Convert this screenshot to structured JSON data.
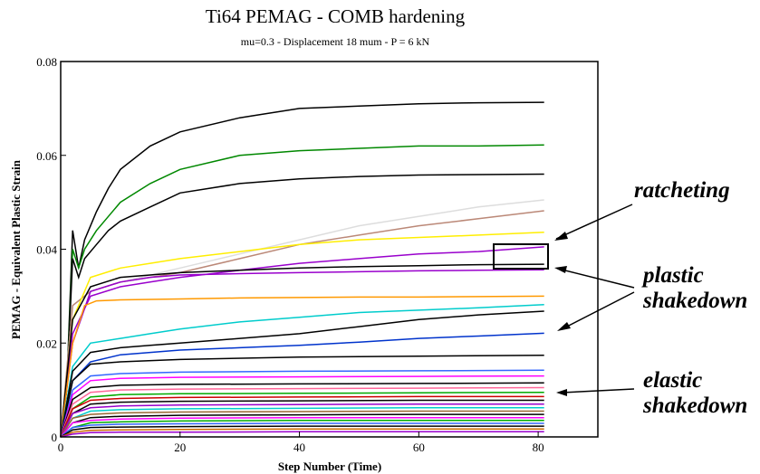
{
  "chart_data": {
    "type": "line",
    "title": "Ti64 PEMAG - COMB hardening",
    "subtitle": "mu=0.3 - Displacement 18 mum - P = 6 kN",
    "xlabel": "Step Number (Time)",
    "ylabel": "PEMAG - Equivalent Plastic Strain",
    "xlim": [
      0,
      90
    ],
    "ylim": [
      0,
      0.08
    ],
    "x_ticks": [
      "0",
      "20",
      "40",
      "60",
      "80"
    ],
    "y_ticks": [
      "0",
      "0.02",
      "0.04",
      "0.06",
      "0.08"
    ],
    "grid": false,
    "series": [
      {
        "color": "#000000",
        "x": [
          0,
          1,
          2,
          3,
          4,
          6,
          8,
          10,
          15,
          20,
          30,
          40,
          50,
          60,
          70,
          81
        ],
        "y": [
          0,
          0.01,
          0.044,
          0.036,
          0.042,
          0.048,
          0.053,
          0.057,
          0.062,
          0.065,
          0.068,
          0.07,
          0.0705,
          0.071,
          0.0712,
          0.0713
        ]
      },
      {
        "color": "#008800",
        "x": [
          0,
          1,
          2,
          3,
          4,
          6,
          8,
          10,
          15,
          20,
          30,
          40,
          50,
          60,
          70,
          81
        ],
        "y": [
          0,
          0.01,
          0.04,
          0.036,
          0.04,
          0.044,
          0.047,
          0.05,
          0.054,
          0.057,
          0.06,
          0.061,
          0.0615,
          0.062,
          0.062,
          0.0622
        ]
      },
      {
        "color": "#000000",
        "x": [
          0,
          1,
          2,
          3,
          4,
          6,
          8,
          10,
          15,
          20,
          30,
          40,
          50,
          60,
          70,
          81
        ],
        "y": [
          0,
          0.01,
          0.038,
          0.034,
          0.038,
          0.041,
          0.044,
          0.046,
          0.049,
          0.052,
          0.054,
          0.055,
          0.0555,
          0.0558,
          0.0559,
          0.056
        ]
      },
      {
        "color": "#dddddd",
        "x": [
          0,
          2,
          5,
          10,
          20,
          30,
          40,
          50,
          60,
          70,
          81
        ],
        "y": [
          0,
          0.028,
          0.031,
          0.033,
          0.036,
          0.039,
          0.042,
          0.045,
          0.047,
          0.049,
          0.0505
        ]
      },
      {
        "color": "#bb8877",
        "x": [
          0,
          2,
          5,
          10,
          20,
          30,
          40,
          50,
          60,
          70,
          81
        ],
        "y": [
          0,
          0.028,
          0.031,
          0.033,
          0.035,
          0.038,
          0.041,
          0.043,
          0.045,
          0.0465,
          0.0482
        ]
      },
      {
        "color": "#ffee00",
        "x": [
          0,
          2,
          5,
          10,
          15,
          20,
          30,
          40,
          50,
          60,
          70,
          81
        ],
        "y": [
          0,
          0.025,
          0.034,
          0.036,
          0.037,
          0.038,
          0.0395,
          0.041,
          0.042,
          0.0425,
          0.043,
          0.0436
        ]
      },
      {
        "color": "#9900cc",
        "x": [
          0,
          2,
          5,
          10,
          15,
          20,
          30,
          40,
          50,
          60,
          70,
          81
        ],
        "y": [
          0,
          0.022,
          0.03,
          0.032,
          0.033,
          0.034,
          0.0355,
          0.037,
          0.038,
          0.039,
          0.0395,
          0.0405
        ]
      },
      {
        "color": "#000000",
        "x": [
          0,
          2,
          5,
          10,
          15,
          20,
          30,
          40,
          50,
          60,
          70,
          81
        ],
        "y": [
          0,
          0.025,
          0.032,
          0.034,
          0.0345,
          0.035,
          0.0355,
          0.036,
          0.0363,
          0.0365,
          0.0367,
          0.0368
        ]
      },
      {
        "color": "#9900cc",
        "x": [
          0,
          2,
          5,
          10,
          15,
          20,
          30,
          40,
          50,
          60,
          70,
          81
        ],
        "y": [
          0,
          0.02,
          0.031,
          0.033,
          0.034,
          0.0345,
          0.0348,
          0.035,
          0.0352,
          0.0354,
          0.0355,
          0.0356
        ]
      },
      {
        "color": "#ff9900",
        "x": [
          0,
          2,
          4,
          6,
          10,
          20,
          30,
          40,
          50,
          60,
          70,
          81
        ],
        "y": [
          0,
          0.02,
          0.028,
          0.029,
          0.0292,
          0.0294,
          0.0296,
          0.0297,
          0.0298,
          0.0298,
          0.0299,
          0.03
        ]
      },
      {
        "color": "#00cccc",
        "x": [
          0,
          2,
          5,
          10,
          15,
          20,
          30,
          40,
          50,
          60,
          70,
          81
        ],
        "y": [
          0,
          0.015,
          0.02,
          0.021,
          0.022,
          0.023,
          0.0245,
          0.0255,
          0.0265,
          0.027,
          0.0275,
          0.0282
        ]
      },
      {
        "color": "#000000",
        "x": [
          0,
          2,
          5,
          10,
          15,
          20,
          30,
          40,
          50,
          60,
          70,
          81
        ],
        "y": [
          0,
          0.014,
          0.018,
          0.019,
          0.0195,
          0.02,
          0.021,
          0.022,
          0.0235,
          0.025,
          0.026,
          0.0268
        ]
      },
      {
        "color": "#0033cc",
        "x": [
          0,
          2,
          5,
          10,
          15,
          20,
          30,
          40,
          50,
          60,
          70,
          81
        ],
        "y": [
          0,
          0.012,
          0.016,
          0.0175,
          0.018,
          0.0185,
          0.019,
          0.0195,
          0.0202,
          0.021,
          0.0215,
          0.0221
        ]
      },
      {
        "color": "#000000",
        "x": [
          0,
          2,
          5,
          10,
          20,
          40,
          60,
          81
        ],
        "y": [
          0,
          0.012,
          0.0155,
          0.016,
          0.0165,
          0.017,
          0.0172,
          0.0174
        ]
      },
      {
        "color": "#3366ff",
        "x": [
          0,
          2,
          5,
          10,
          20,
          40,
          60,
          81
        ],
        "y": [
          0,
          0.01,
          0.013,
          0.0135,
          0.0138,
          0.014,
          0.0141,
          0.0142
        ]
      },
      {
        "color": "#ff00ff",
        "x": [
          0,
          2,
          5,
          10,
          20,
          40,
          60,
          81
        ],
        "y": [
          0,
          0.009,
          0.012,
          0.0125,
          0.0127,
          0.0128,
          0.0129,
          0.013
        ]
      },
      {
        "color": "#000000",
        "x": [
          0,
          2,
          5,
          10,
          20,
          40,
          60,
          81
        ],
        "y": [
          0,
          0.008,
          0.0105,
          0.011,
          0.0112,
          0.0113,
          0.0114,
          0.0115
        ]
      },
      {
        "color": "#ff6699",
        "x": [
          0,
          2,
          5,
          10,
          20,
          40,
          60,
          81
        ],
        "y": [
          0,
          0.007,
          0.0095,
          0.01,
          0.0102,
          0.0103,
          0.0104,
          0.0105
        ]
      },
      {
        "color": "#00aa00",
        "x": [
          0,
          2,
          5,
          10,
          20,
          40,
          60,
          81
        ],
        "y": [
          0,
          0.006,
          0.0085,
          0.009,
          0.0092,
          0.0093,
          0.0094,
          0.0095
        ]
      },
      {
        "color": "#cc0000",
        "x": [
          0,
          2,
          5,
          10,
          20,
          40,
          60,
          81
        ],
        "y": [
          0,
          0.006,
          0.0078,
          0.0082,
          0.0084,
          0.0085,
          0.0086,
          0.0086
        ]
      },
      {
        "color": "#000000",
        "x": [
          0,
          2,
          5,
          10,
          20,
          40,
          60,
          81
        ],
        "y": [
          0,
          0.005,
          0.007,
          0.0074,
          0.0076,
          0.0077,
          0.0078,
          0.0078
        ]
      },
      {
        "color": "#9900cc",
        "x": [
          0,
          2,
          5,
          10,
          20,
          40,
          60,
          81
        ],
        "y": [
          0,
          0.005,
          0.0062,
          0.0066,
          0.0068,
          0.0069,
          0.007,
          0.007
        ]
      },
      {
        "color": "#00cccc",
        "x": [
          0,
          2,
          5,
          10,
          20,
          40,
          60,
          81
        ],
        "y": [
          0,
          0.004,
          0.0055,
          0.0058,
          0.006,
          0.0061,
          0.0062,
          0.0062
        ]
      },
      {
        "color": "#996633",
        "x": [
          0,
          2,
          5,
          10,
          20,
          40,
          60,
          81
        ],
        "y": [
          0,
          0.004,
          0.0048,
          0.0051,
          0.0053,
          0.0054,
          0.0055,
          0.0055
        ]
      },
      {
        "color": "#000000",
        "x": [
          0,
          2,
          5,
          10,
          20,
          40,
          60,
          81
        ],
        "y": [
          0,
          0.003,
          0.0041,
          0.0044,
          0.0046,
          0.0047,
          0.0048,
          0.0048
        ]
      },
      {
        "color": "#ff00ff",
        "x": [
          0,
          2,
          5,
          10,
          20,
          40,
          60,
          81
        ],
        "y": [
          0,
          0.003,
          0.0035,
          0.0038,
          0.004,
          0.0041,
          0.0041,
          0.0041
        ]
      },
      {
        "color": "#00aa00",
        "x": [
          0,
          2,
          5,
          10,
          20,
          40,
          60,
          81
        ],
        "y": [
          0,
          0.002,
          0.003,
          0.0032,
          0.0034,
          0.0035,
          0.0035,
          0.0035
        ]
      },
      {
        "color": "#3366ff",
        "x": [
          0,
          2,
          5,
          10,
          20,
          40,
          60,
          81
        ],
        "y": [
          0,
          0.002,
          0.0025,
          0.0027,
          0.0028,
          0.0029,
          0.0029,
          0.0029
        ]
      },
      {
        "color": "#000000",
        "x": [
          0,
          2,
          5,
          10,
          20,
          40,
          60,
          81
        ],
        "y": [
          0,
          0.0015,
          0.002,
          0.0021,
          0.0022,
          0.0023,
          0.0023,
          0.0023
        ]
      },
      {
        "color": "#cc6600",
        "x": [
          0,
          2,
          5,
          10,
          20,
          40,
          60,
          81
        ],
        "y": [
          0,
          0.001,
          0.0014,
          0.0015,
          0.0016,
          0.0017,
          0.0017,
          0.0017
        ]
      },
      {
        "color": "#9900cc",
        "x": [
          0,
          2,
          5,
          10,
          20,
          40,
          60,
          81
        ],
        "y": [
          0,
          0.0006,
          0.0009,
          0.001,
          0.001,
          0.0011,
          0.0011,
          0.0011
        ]
      }
    ],
    "annotations": [
      {
        "lines": [
          "ratcheting"
        ],
        "x": 700,
        "y": 218
      },
      {
        "lines": [
          "plastic",
          "shakedown"
        ],
        "x": 710,
        "y": 312
      },
      {
        "lines": [
          "elastic",
          "shakedown"
        ],
        "x": 710,
        "y": 428
      }
    ]
  }
}
